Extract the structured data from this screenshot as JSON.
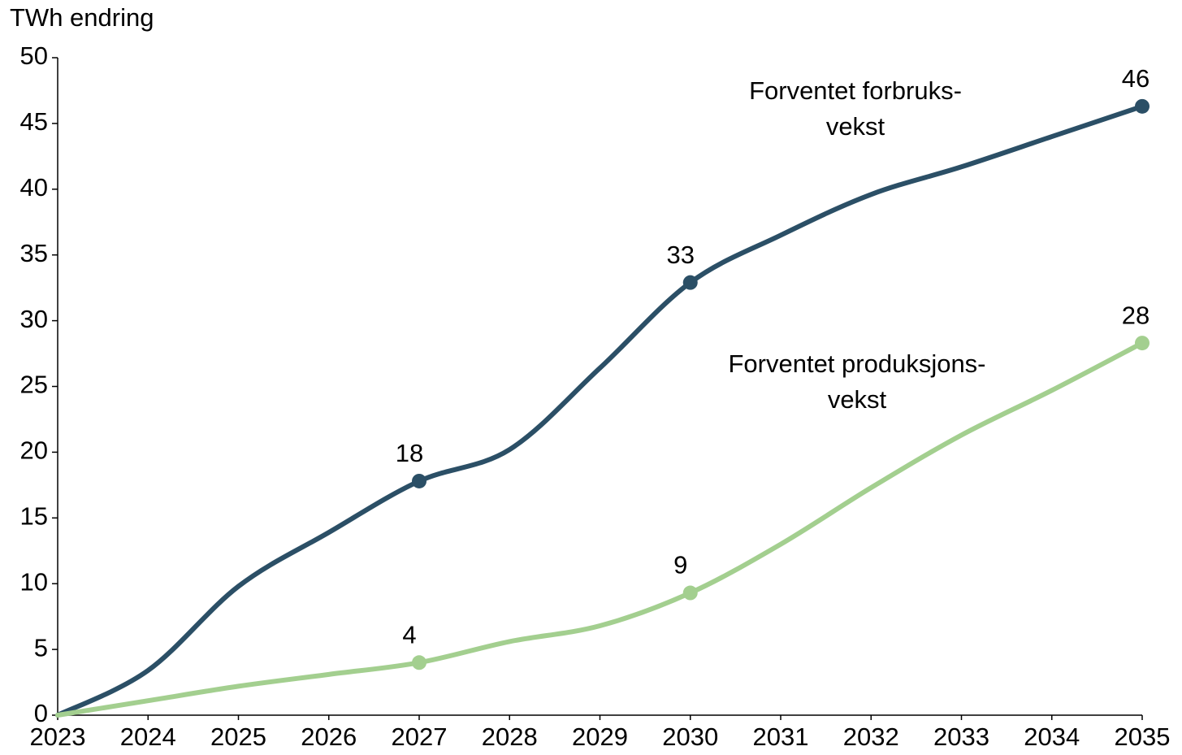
{
  "chart_data": {
    "type": "line",
    "y_label": "TWh endring",
    "x": [
      2023,
      2024,
      2025,
      2026,
      2027,
      2028,
      2029,
      2030,
      2031,
      2032,
      2033,
      2034,
      2035
    ],
    "xlim": [
      2023,
      2035
    ],
    "xticks": [
      2023,
      2024,
      2025,
      2026,
      2027,
      2028,
      2029,
      2030,
      2031,
      2032,
      2033,
      2034,
      2035
    ],
    "ylim": [
      0,
      50
    ],
    "yticks": [
      0,
      5,
      10,
      15,
      20,
      25,
      30,
      35,
      40,
      45,
      50
    ],
    "grid": false,
    "series": [
      {
        "name": [
          "Forventet forbruks-",
          "vekst"
        ],
        "color": "#2b4f66",
        "values": [
          0,
          3.4,
          9.8,
          13.9,
          17.8,
          20.2,
          26.4,
          32.9,
          36.5,
          39.6,
          41.7,
          44.0,
          46.3
        ],
        "value_labels": [
          null,
          null,
          null,
          null,
          "18",
          null,
          null,
          "33",
          null,
          null,
          null,
          null,
          "46"
        ]
      },
      {
        "name": [
          "Forventet produksjons-",
          "vekst"
        ],
        "color": "#a3cf8f",
        "values": [
          0,
          1.1,
          2.2,
          3.1,
          4.0,
          5.6,
          6.8,
          9.3,
          13.0,
          17.3,
          21.3,
          24.7,
          28.3
        ],
        "value_labels": [
          null,
          null,
          null,
          null,
          "4",
          null,
          null,
          "9",
          null,
          null,
          null,
          null,
          "28"
        ]
      }
    ]
  }
}
